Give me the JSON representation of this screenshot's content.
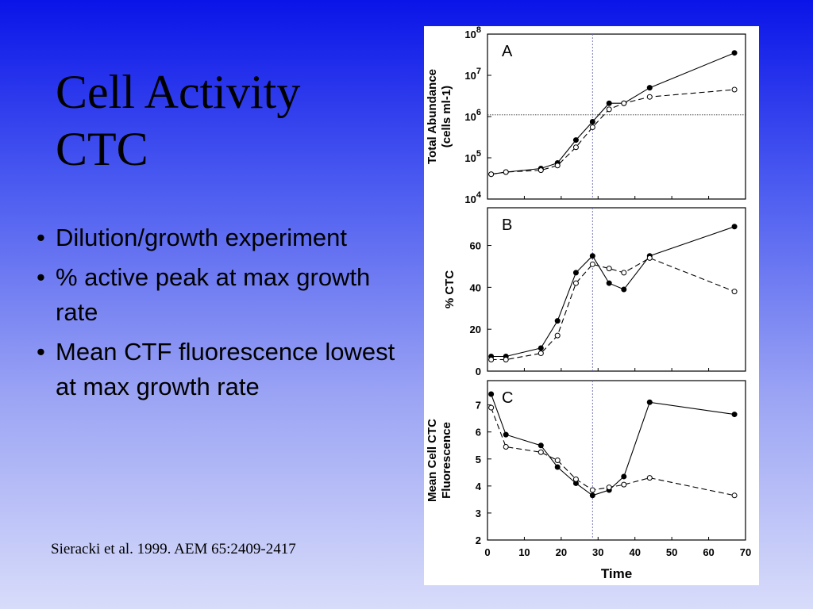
{
  "slide": {
    "title_lines": [
      "Cell Activity",
      "CTC"
    ],
    "bullets": [
      "Dilution/growth experiment",
      "% active peak at max growth rate",
      "Mean CTF fluorescence lowest at max growth rate"
    ],
    "citation": "Sieracki et al. 1999. AEM 65:2409-2417"
  },
  "chart_data": [
    {
      "type": "line",
      "panel_label": "A",
      "ylabel_lines": [
        "Total Abundance",
        "(cells ml-1)"
      ],
      "yscale": "log",
      "ylim": [
        10000,
        100000000
      ],
      "ytick_labels": [
        {
          "base": "10",
          "exp": "4"
        },
        {
          "base": "10",
          "exp": "5"
        },
        {
          "base": "10",
          "exp": "6"
        },
        {
          "base": "10",
          "exp": "7"
        },
        {
          "base": "10",
          "exp": "8"
        }
      ],
      "yticks": [
        10000,
        100000,
        1000000,
        10000000,
        100000000
      ],
      "xlim": [
        0,
        70
      ],
      "vline_x": 28.5,
      "hline_y": 1100000,
      "series": [
        {
          "marker": "filled",
          "style": "solid",
          "x": [
            1,
            5,
            14.5,
            19,
            24,
            28.5,
            33,
            37,
            44,
            67
          ],
          "y": [
            40000,
            45000,
            55000,
            75000,
            270000,
            750000,
            2100000,
            2100000,
            5000000,
            35000000
          ]
        },
        {
          "marker": "open",
          "style": "dashed",
          "x": [
            1,
            5,
            14.5,
            19,
            24,
            28.5,
            33,
            37,
            44,
            67
          ],
          "y": [
            40000,
            45000,
            50000,
            65000,
            180000,
            550000,
            1500000,
            2100000,
            3000000,
            4500000
          ]
        }
      ]
    },
    {
      "type": "line",
      "panel_label": "B",
      "ylabel_lines": [
        "% CTC"
      ],
      "ylim": [
        0,
        78
      ],
      "yticks": [
        0,
        20,
        40,
        60
      ],
      "xlim": [
        0,
        70
      ],
      "vline_x": 28.5,
      "series": [
        {
          "marker": "filled",
          "style": "solid",
          "x": [
            1,
            5,
            14.5,
            19,
            24,
            28.5,
            33,
            37,
            44,
            67
          ],
          "y": [
            7,
            7,
            11,
            24,
            47,
            55,
            42,
            39,
            55,
            69
          ]
        },
        {
          "marker": "open",
          "style": "dashed",
          "x": [
            1,
            5,
            14.5,
            19,
            24,
            28.5,
            33,
            37,
            44,
            67
          ],
          "y": [
            5.5,
            5.5,
            8.5,
            17,
            42,
            51,
            49,
            47,
            54,
            38
          ]
        }
      ]
    },
    {
      "type": "line",
      "panel_label": "C",
      "ylabel_lines": [
        "Mean Cell CTC",
        "Fluorescence"
      ],
      "ylim": [
        2,
        7.9
      ],
      "yticks": [
        2,
        3,
        4,
        5,
        6,
        7
      ],
      "xlim": [
        0,
        70
      ],
      "xticks": [
        0,
        10,
        20,
        30,
        40,
        50,
        60,
        70
      ],
      "xlabel": "Time",
      "vline_x": 28.5,
      "series": [
        {
          "marker": "filled",
          "style": "solid",
          "x": [
            1,
            5,
            14.5,
            19,
            24,
            28.5,
            33,
            37,
            44,
            67
          ],
          "y": [
            7.4,
            5.9,
            5.5,
            4.7,
            4.1,
            3.65,
            3.85,
            4.35,
            7.1,
            6.65
          ]
        },
        {
          "marker": "open",
          "style": "dashed",
          "x": [
            1,
            5,
            14.5,
            19,
            24,
            28.5,
            33,
            37,
            44,
            67
          ],
          "y": [
            6.9,
            5.45,
            5.25,
            4.95,
            4.25,
            3.85,
            3.95,
            4.05,
            4.3,
            3.65
          ]
        }
      ]
    }
  ]
}
